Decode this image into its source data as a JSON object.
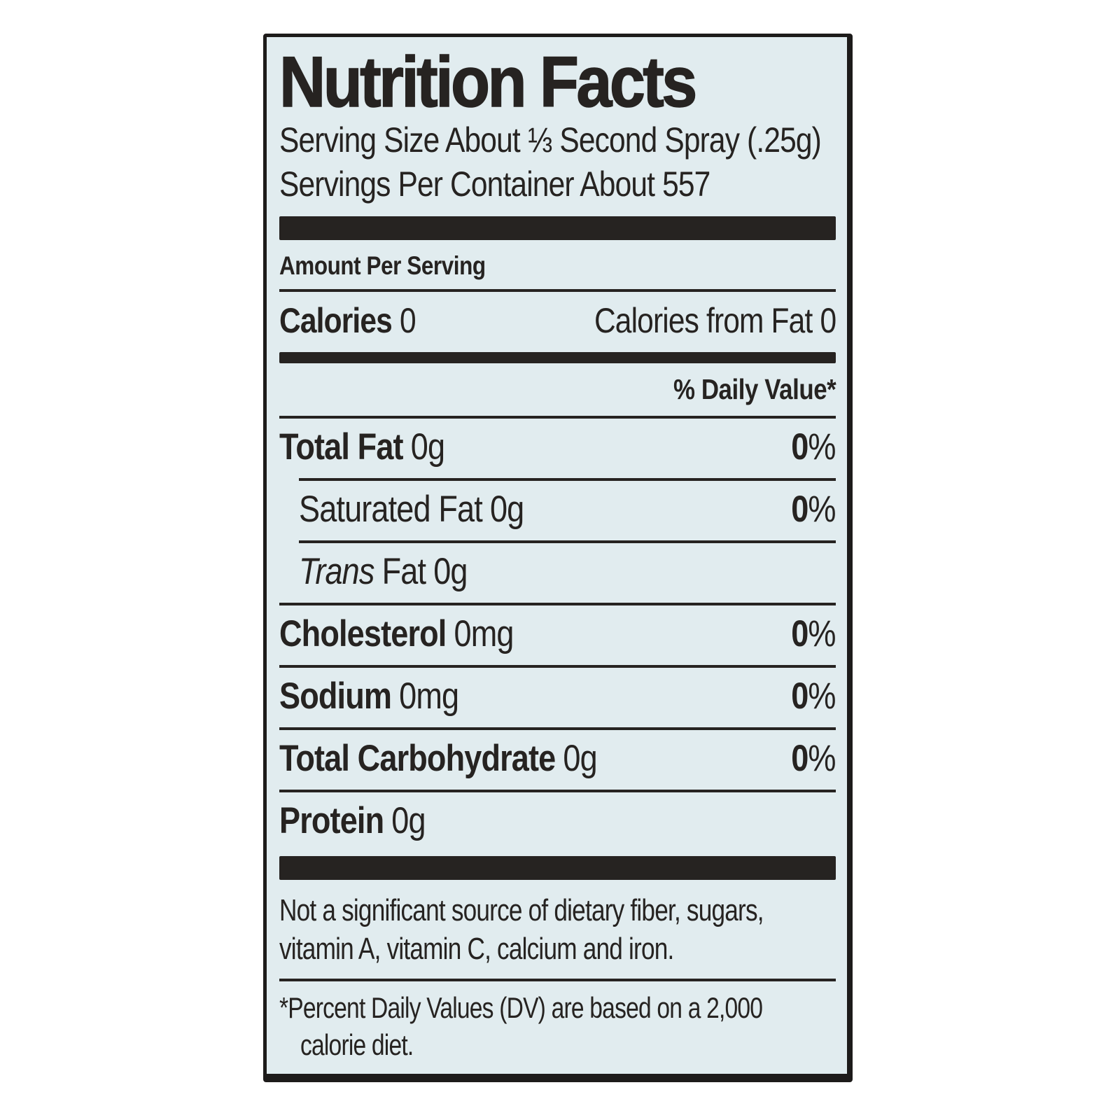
{
  "label": {
    "title": "Nutrition Facts",
    "serving_size": "Serving Size About ⅓ Second Spray (.25g)",
    "servings_per_container": "Servings Per Container About 557",
    "amount_per_serving": "Amount Per Serving",
    "calories": {
      "label": "Calories",
      "value": "0"
    },
    "calories_from_fat": {
      "label": "Calories from Fat",
      "value": "0"
    },
    "daily_value_header": "% Daily Value*",
    "rows": [
      {
        "name": "Total Fat",
        "amount": "0g",
        "dv": "0",
        "pct": "%"
      },
      {
        "name": "Saturated Fat",
        "amount": "0g",
        "dv": "0",
        "pct": "%"
      },
      {
        "name_italic": "Trans",
        "name": "Fat",
        "amount": "0g"
      },
      {
        "name": "Cholesterol",
        "amount": "0mg",
        "dv": "0",
        "pct": "%"
      },
      {
        "name": "Sodium",
        "amount": "0mg",
        "dv": "0",
        "pct": "%"
      },
      {
        "name": "Total Carbohydrate",
        "amount": "0g",
        "dv": "0",
        "pct": "%"
      },
      {
        "name": "Protein",
        "amount": "0g"
      }
    ],
    "not_significant_note": {
      "line1": "Not a significant source of dietary fiber, sugars,",
      "line2": "vitamin A, vitamin C, calcium and iron."
    },
    "footnote": {
      "marker": "*",
      "line1": "Percent Daily Values (DV) are based on a 2,000",
      "line2": "calorie diet."
    },
    "colors": {
      "label_background": "#e1ecef",
      "ink": "#262321",
      "border": "#1d1b1a"
    }
  }
}
